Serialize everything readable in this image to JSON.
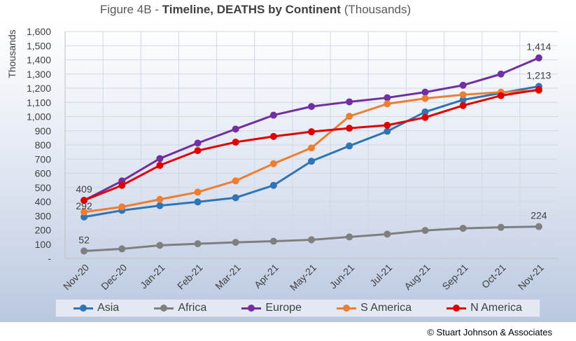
{
  "header": {
    "title_prefix": "Figure 4B - ",
    "title_bold": "Timeline, DEATHS by Continent",
    "title_suffix": " (Thousands)"
  },
  "credit": "© Stuart Johnson & Associates",
  "chart_data": {
    "type": "line",
    "title": "Figure 4B - Timeline, DEATHS by Continent (Thousands)",
    "xlabel": "",
    "ylabel": "Thousands",
    "ylim": [
      0,
      1600
    ],
    "yticks": [
      "-",
      "100",
      "200",
      "300",
      "400",
      "500",
      "600",
      "700",
      "800",
      "900",
      "1,000",
      "1,100",
      "1,200",
      "1,300",
      "1,400",
      "1,500",
      "1,600"
    ],
    "categories": [
      "Nov-20",
      "Dec-20",
      "Jan-21",
      "Feb-21",
      "Mar-21",
      "Apr-21",
      "May-21",
      "Jun-21",
      "Jul-21",
      "Aug-21",
      "Sep-21",
      "Oct-21",
      "Nov-21"
    ],
    "grid": true,
    "legend": "bottom",
    "series": [
      {
        "name": "Asia",
        "color": "#2e75b6",
        "values": [
          292,
          338,
          372,
          398,
          428,
          515,
          685,
          793,
          896,
          1033,
          1118,
          1166,
          1213
        ]
      },
      {
        "name": "Africa",
        "color": "#7f7f7f",
        "values": [
          52,
          67,
          92,
          103,
          113,
          121,
          131,
          151,
          171,
          197,
          212,
          219,
          224
        ]
      },
      {
        "name": "Europe",
        "color": "#7030a0",
        "values": [
          409,
          546,
          704,
          813,
          912,
          1010,
          1071,
          1104,
          1133,
          1172,
          1221,
          1300,
          1414
        ]
      },
      {
        "name": "S America",
        "color": "#ed7d31",
        "values": [
          327,
          363,
          416,
          467,
          547,
          668,
          779,
          1002,
          1090,
          1128,
          1154,
          1172,
          1183
        ]
      },
      {
        "name": "N America",
        "color": "#e00000",
        "values": [
          409,
          515,
          656,
          760,
          820,
          860,
          893,
          918,
          939,
          994,
          1078,
          1148,
          1190
        ]
      }
    ],
    "annotations": [
      {
        "text": "409",
        "series": "Europe",
        "index": 0
      },
      {
        "text": "292",
        "series": "Asia",
        "index": 0
      },
      {
        "text": "52",
        "series": "Africa",
        "index": 0
      },
      {
        "text": "1,414",
        "series": "Europe",
        "index": 12
      },
      {
        "text": "1,213",
        "series": "Asia",
        "index": 12
      },
      {
        "text": "224",
        "series": "Africa",
        "index": 12
      }
    ]
  }
}
